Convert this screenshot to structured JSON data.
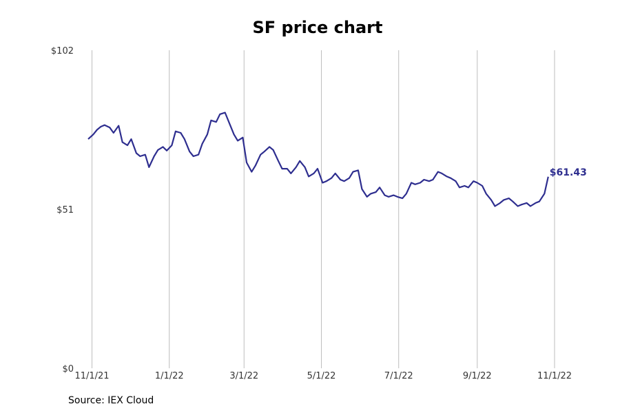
{
  "chart_data": {
    "type": "line",
    "title": "SF price chart",
    "source": "Source: IEX Cloud",
    "xlabel": "",
    "ylabel": "",
    "grid": "vertical",
    "x_range": [
      "2021-10-29",
      "2022-11-01"
    ],
    "ylim": [
      0,
      102
    ],
    "y_ticks": [
      {
        "value": 0,
        "label": "$0"
      },
      {
        "value": 51,
        "label": "$51"
      },
      {
        "value": 102,
        "label": "$102"
      }
    ],
    "x_ticks": [
      {
        "date": "2021-11-01",
        "label": "11/1/21"
      },
      {
        "date": "2022-01-01",
        "label": "1/1/22"
      },
      {
        "date": "2022-03-01",
        "label": "3/1/22"
      },
      {
        "date": "2022-05-01",
        "label": "5/1/22"
      },
      {
        "date": "2022-07-01",
        "label": "7/1/22"
      },
      {
        "date": "2022-09-01",
        "label": "9/1/22"
      },
      {
        "date": "2022-11-01",
        "label": "11/1/22"
      }
    ],
    "line_color": "#2e2e8f",
    "last_value_label": "$61.43",
    "series": [
      {
        "x": [
          "2021-10-29",
          "2021-11-02",
          "2021-11-05",
          "2021-11-08",
          "2021-11-11",
          "2021-11-15",
          "2021-11-18",
          "2021-11-22",
          "2021-11-25",
          "2021-11-29",
          "2021-12-02",
          "2021-12-06",
          "2021-12-09",
          "2021-12-13",
          "2021-12-16",
          "2021-12-20",
          "2021-12-23",
          "2021-12-27",
          "2021-12-30",
          "2022-01-03",
          "2022-01-06",
          "2022-01-10",
          "2022-01-13",
          "2022-01-17",
          "2022-01-20",
          "2022-01-24",
          "2022-01-27",
          "2022-01-31",
          "2022-02-03",
          "2022-02-07",
          "2022-02-10",
          "2022-02-14",
          "2022-02-17",
          "2022-02-21",
          "2022-02-24",
          "2022-02-28",
          "2022-03-03",
          "2022-03-07",
          "2022-03-10",
          "2022-03-14",
          "2022-03-17",
          "2022-03-21",
          "2022-03-24",
          "2022-03-28",
          "2022-03-31",
          "2022-04-04",
          "2022-04-07",
          "2022-04-11",
          "2022-04-14",
          "2022-04-18",
          "2022-04-21",
          "2022-04-25",
          "2022-04-28",
          "2022-05-02",
          "2022-05-05",
          "2022-05-09",
          "2022-05-12",
          "2022-05-16",
          "2022-05-19",
          "2022-05-23",
          "2022-05-26",
          "2022-05-30",
          "2022-06-02",
          "2022-06-06",
          "2022-06-09",
          "2022-06-13",
          "2022-06-16",
          "2022-06-20",
          "2022-06-23",
          "2022-06-27",
          "2022-06-30",
          "2022-07-04",
          "2022-07-07",
          "2022-07-11",
          "2022-07-14",
          "2022-07-18",
          "2022-07-21",
          "2022-07-25",
          "2022-07-28",
          "2022-08-01",
          "2022-08-04",
          "2022-08-08",
          "2022-08-11",
          "2022-08-15",
          "2022-08-18",
          "2022-08-22",
          "2022-08-25",
          "2022-08-29",
          "2022-09-01",
          "2022-09-05",
          "2022-09-08",
          "2022-09-12",
          "2022-09-15",
          "2022-09-19",
          "2022-09-22",
          "2022-09-26",
          "2022-09-29",
          "2022-10-03",
          "2022-10-06",
          "2022-10-10",
          "2022-10-13",
          "2022-10-17",
          "2022-10-20",
          "2022-10-24",
          "2022-10-27"
        ],
        "values": [
          73.5,
          75.0,
          76.5,
          77.5,
          78.0,
          77.2,
          75.5,
          77.8,
          72.5,
          71.5,
          73.5,
          69.0,
          68.0,
          68.5,
          64.5,
          68.0,
          70.0,
          71.0,
          69.8,
          71.5,
          76.0,
          75.5,
          73.5,
          69.5,
          68.0,
          68.5,
          72.0,
          75.0,
          79.5,
          79.0,
          81.5,
          82.0,
          79.0,
          75.0,
          73.0,
          74.0,
          66.0,
          63.0,
          65.0,
          68.5,
          69.5,
          71.0,
          70.0,
          66.5,
          64.0,
          64.0,
          62.5,
          64.5,
          66.5,
          64.5,
          61.5,
          62.5,
          64.0,
          59.5,
          60.0,
          61.0,
          62.5,
          60.5,
          60.0,
          61.0,
          63.0,
          63.5,
          57.5,
          55.0,
          56.0,
          56.5,
          58.0,
          55.5,
          55.0,
          55.5,
          55.0,
          54.5,
          56.0,
          59.5,
          59.0,
          59.5,
          60.5,
          60.0,
          60.5,
          63.0,
          62.5,
          61.5,
          61.0,
          60.0,
          58.0,
          58.5,
          58.0,
          60.0,
          59.5,
          58.5,
          56.0,
          54.0,
          52.0,
          53.0,
          54.0,
          54.5,
          53.5,
          52.0,
          52.5,
          53.0,
          52.0,
          53.0,
          53.5,
          56.0,
          61.43
        ]
      }
    ]
  }
}
